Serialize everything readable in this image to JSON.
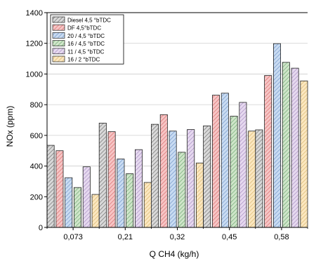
{
  "chart_data": {
    "type": "bar",
    "title": "",
    "xlabel": "Q CH4 (kg/h)",
    "ylabel": "NOx (ppm)",
    "ylim": [
      0,
      1400
    ],
    "yticks": [
      0,
      200,
      400,
      600,
      800,
      1000,
      1200,
      1400
    ],
    "grid": true,
    "legend_position": "top-left",
    "categories": [
      "0,073",
      "0,21",
      "0,32",
      "0,45",
      "0,58"
    ],
    "series": [
      {
        "name": "Diesel 4,5 °bTDC",
        "color": "#d9d9d9",
        "hatch": "#6b6b6b",
        "values": [
          535,
          680,
          672,
          662,
          636
        ]
      },
      {
        "name": "DF 4,5°bTDC",
        "color": "#f6c5c5",
        "hatch": "#d86a6a",
        "values": [
          500,
          624,
          735,
          862,
          990
        ]
      },
      {
        "name": "20 / 4,5 °bTDC",
        "color": "#c9dcf2",
        "hatch": "#6f93c8",
        "values": [
          324,
          446,
          628,
          875,
          1198
        ]
      },
      {
        "name": "16 / 4,5 °bTDC",
        "color": "#cfe5c9",
        "hatch": "#6aa66f",
        "values": [
          260,
          350,
          490,
          725,
          1076
        ]
      },
      {
        "name": "11 / 4,5 °bTDC",
        "color": "#e6d9ef",
        "hatch": "#a58ac0",
        "values": [
          395,
          507,
          638,
          815,
          1038
        ]
      },
      {
        "name": "16 / 2 °bTDC",
        "color": "#fbe7c0",
        "hatch": "#d9b56a",
        "values": [
          215,
          293,
          420,
          628,
          955
        ]
      }
    ]
  }
}
